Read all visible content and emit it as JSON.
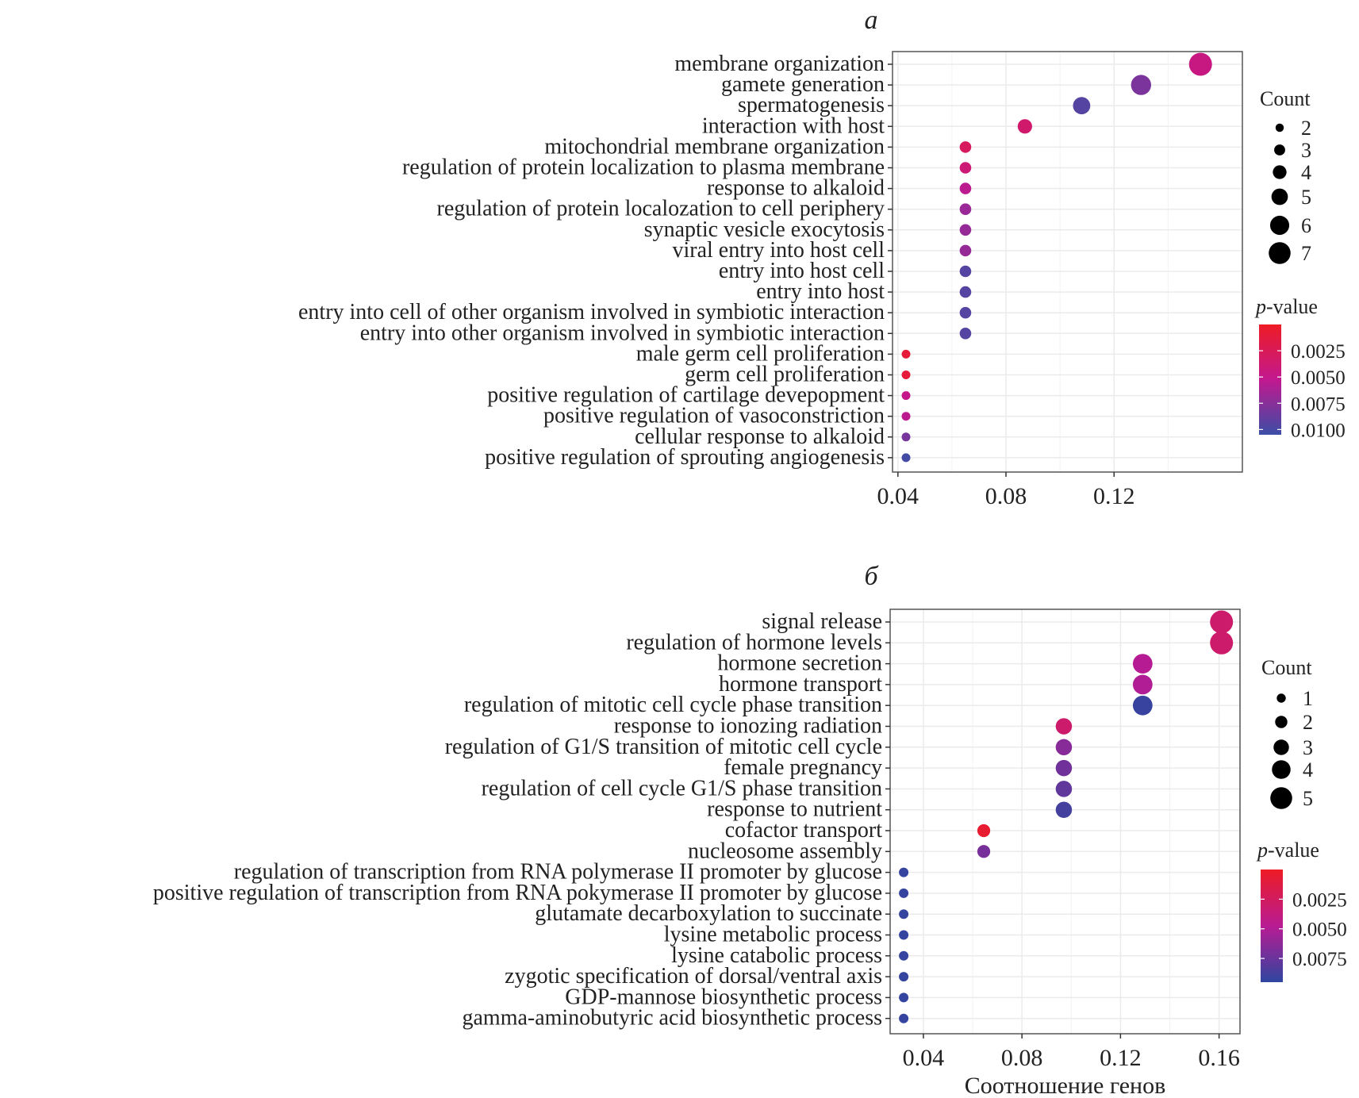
{
  "chart_data": [
    {
      "type": "scatter",
      "panel_label": "a",
      "title": "",
      "xlabel": "",
      "ylabel": "",
      "xlim": [
        0.038,
        0.1675
      ],
      "xticks": [
        0.04,
        0.08,
        0.12
      ],
      "xtick_labels": [
        "0.04",
        "0.08",
        "0.12"
      ],
      "grid": true,
      "legend_position": "right",
      "size_legend": {
        "title": "Count",
        "values": [
          2,
          3,
          4,
          5,
          6,
          7
        ],
        "labels": [
          "2",
          "3",
          "4",
          "5",
          "6",
          "7"
        ]
      },
      "color_legend": {
        "title_prefix": "p",
        "title_suffix": "-value",
        "range": [
          0.0,
          0.0105
        ],
        "ticks": [
          0.0025,
          0.005,
          0.0075,
          0.01
        ],
        "tick_labels": [
          "0.0025",
          "0.0050",
          "0.0075",
          "0.0100"
        ],
        "low_color": "#ee1c25",
        "mid_color": "#c2188f",
        "high_color": "#3b4ea6"
      },
      "points": [
        {
          "term": "membrane organization",
          "gene_ratio": 0.152,
          "count": 7,
          "p_value": 0.0046
        },
        {
          "term": "gamete generation",
          "gene_ratio": 0.13,
          "count": 6,
          "p_value": 0.008
        },
        {
          "term": "spermatogenesis",
          "gene_ratio": 0.108,
          "count": 5,
          "p_value": 0.0095
        },
        {
          "term": "interaction with host",
          "gene_ratio": 0.087,
          "count": 4,
          "p_value": 0.0035
        },
        {
          "term": "mitochondrial membrane organization",
          "gene_ratio": 0.065,
          "count": 3,
          "p_value": 0.0028
        },
        {
          "term": "regulation of protein localization to plasma membrane",
          "gene_ratio": 0.065,
          "count": 3,
          "p_value": 0.004
        },
        {
          "term": "response to alkaloid",
          "gene_ratio": 0.065,
          "count": 3,
          "p_value": 0.0055
        },
        {
          "term": "regulation of protein localozation to cell periphery",
          "gene_ratio": 0.065,
          "count": 3,
          "p_value": 0.0068
        },
        {
          "term": "synaptic vesicle exocytosis",
          "gene_ratio": 0.065,
          "count": 3,
          "p_value": 0.007
        },
        {
          "term": "viral entry into host cell",
          "gene_ratio": 0.065,
          "count": 3,
          "p_value": 0.007
        },
        {
          "term": "entry into host cell",
          "gene_ratio": 0.065,
          "count": 3,
          "p_value": 0.0095
        },
        {
          "term": "entry into host",
          "gene_ratio": 0.065,
          "count": 3,
          "p_value": 0.0095
        },
        {
          "term": "entry into cell of other organism involved in symbiotic interaction",
          "gene_ratio": 0.065,
          "count": 3,
          "p_value": 0.0095
        },
        {
          "term": "entry into other organism involved in symbiotic interaction",
          "gene_ratio": 0.065,
          "count": 3,
          "p_value": 0.0095
        },
        {
          "term": "male germ cell proliferation",
          "gene_ratio": 0.043,
          "count": 2,
          "p_value": 0.001
        },
        {
          "term": "germ cell proliferation",
          "gene_ratio": 0.043,
          "count": 2,
          "p_value": 0.001
        },
        {
          "term": "positive regulation of cartilage devepopment",
          "gene_ratio": 0.043,
          "count": 2,
          "p_value": 0.005
        },
        {
          "term": "positive regulation of vasoconstriction",
          "gene_ratio": 0.043,
          "count": 2,
          "p_value": 0.0055
        },
        {
          "term": "cellular response to alkaloid",
          "gene_ratio": 0.043,
          "count": 2,
          "p_value": 0.0082
        },
        {
          "term": "positive regulation of sprouting angiogenesis",
          "gene_ratio": 0.043,
          "count": 2,
          "p_value": 0.0102
        }
      ]
    },
    {
      "type": "scatter",
      "panel_label": "б",
      "title": "",
      "xlabel": "Соотношение генов",
      "ylabel": "",
      "xlim": [
        0.0265,
        0.1685
      ],
      "xticks": [
        0.04,
        0.08,
        0.12,
        0.16
      ],
      "xtick_labels": [
        "0.04",
        "0.08",
        "0.12",
        "0.16"
      ],
      "grid": true,
      "legend_position": "right",
      "size_legend": {
        "title": "Count",
        "values": [
          1,
          2,
          3,
          4,
          5
        ],
        "labels": [
          "1",
          "2",
          "3",
          "4",
          "5"
        ]
      },
      "color_legend": {
        "title_prefix": "p",
        "title_suffix": "-value",
        "range": [
          0.0,
          0.0095
        ],
        "ticks": [
          0.0025,
          0.005,
          0.0075
        ],
        "tick_labels": [
          "0.0025",
          "0.0050",
          "0.0075"
        ],
        "low_color": "#ee1c25",
        "mid_color": "#b81b93",
        "high_color": "#2f46a0"
      },
      "points": [
        {
          "term": "signal release",
          "gene_ratio": 0.161,
          "count": 5,
          "p_value": 0.003
        },
        {
          "term": "regulation of hormone levels",
          "gene_ratio": 0.161,
          "count": 5,
          "p_value": 0.003
        },
        {
          "term": "hormone secretion",
          "gene_ratio": 0.129,
          "count": 4,
          "p_value": 0.0048
        },
        {
          "term": "hormone transport",
          "gene_ratio": 0.129,
          "count": 4,
          "p_value": 0.005
        },
        {
          "term": "regulation of mitotic cell cycle phase transition",
          "gene_ratio": 0.129,
          "count": 4,
          "p_value": 0.0092
        },
        {
          "term": "response to ionozing radiation",
          "gene_ratio": 0.097,
          "count": 3,
          "p_value": 0.003
        },
        {
          "term": "regulation of G1/S transition of mitotic cell cycle",
          "gene_ratio": 0.097,
          "count": 3,
          "p_value": 0.0065
        },
        {
          "term": "female pregnancy",
          "gene_ratio": 0.097,
          "count": 3,
          "p_value": 0.0072
        },
        {
          "term": "regulation of cell cycle G1/S phase transition",
          "gene_ratio": 0.097,
          "count": 3,
          "p_value": 0.0078
        },
        {
          "term": "response to nutrient",
          "gene_ratio": 0.097,
          "count": 3,
          "p_value": 0.0088
        },
        {
          "term": "cofactor transport",
          "gene_ratio": 0.0645,
          "count": 2,
          "p_value": 0.0005
        },
        {
          "term": "nucleosome assembly",
          "gene_ratio": 0.0645,
          "count": 2,
          "p_value": 0.007
        },
        {
          "term": "regulation of transcription from RNA polymerase II promoter by glucose",
          "gene_ratio": 0.032,
          "count": 1,
          "p_value": 0.0093
        },
        {
          "term": "positive regulation of transcription from RNA pokymerase II promoter by glucose",
          "gene_ratio": 0.032,
          "count": 1,
          "p_value": 0.0093
        },
        {
          "term": "glutamate decarboxylation to succinate",
          "gene_ratio": 0.032,
          "count": 1,
          "p_value": 0.0093
        },
        {
          "term": "lysine metabolic process",
          "gene_ratio": 0.032,
          "count": 1,
          "p_value": 0.0093
        },
        {
          "term": "lysine catabolic process",
          "gene_ratio": 0.032,
          "count": 1,
          "p_value": 0.0093
        },
        {
          "term": "zygotic specification of dorsal/ventral axis",
          "gene_ratio": 0.032,
          "count": 1,
          "p_value": 0.0093
        },
        {
          "term": "GDP-mannose biosynthetic process",
          "gene_ratio": 0.032,
          "count": 1,
          "p_value": 0.0093
        },
        {
          "term": "gamma-aminobutyric acid biosynthetic process",
          "gene_ratio": 0.032,
          "count": 1,
          "p_value": 0.0093
        }
      ]
    }
  ]
}
